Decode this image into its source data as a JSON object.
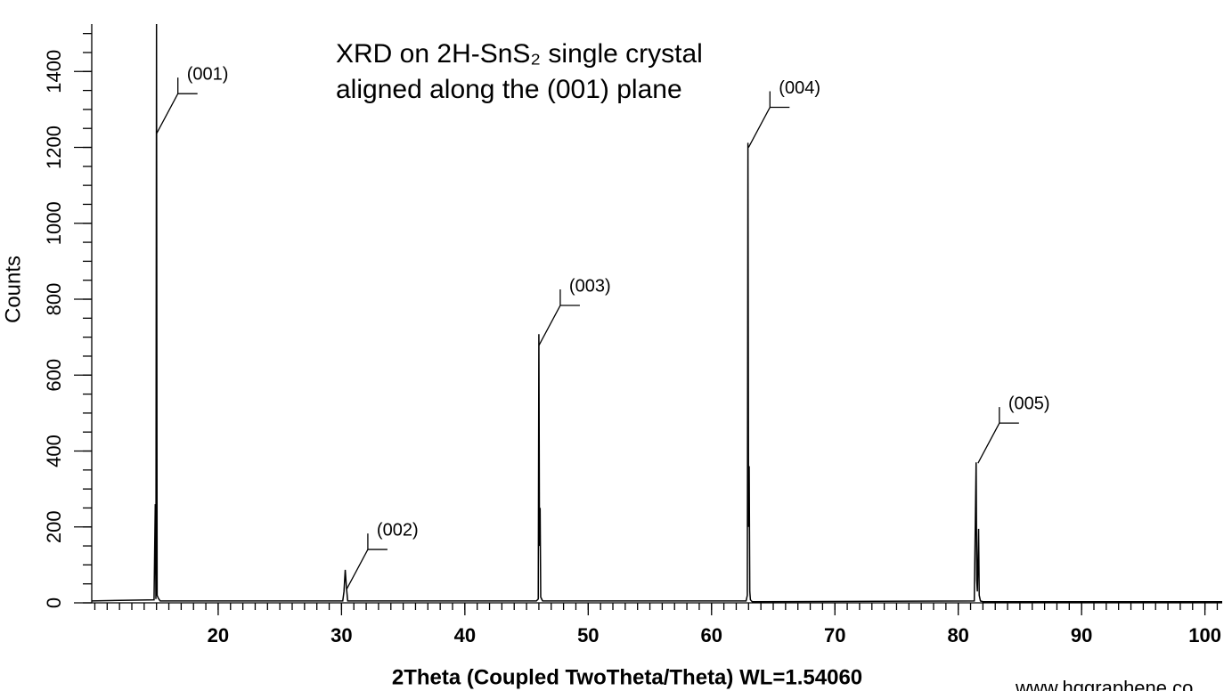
{
  "chart_data": {
    "type": "line",
    "title_lines": [
      "XRD on 2H-SnS₂ single crystal",
      "aligned along the (001) plane"
    ],
    "xlabel": "2Theta (Coupled TwoTheta/Theta) WL=1.54060",
    "ylabel": "Counts",
    "watermark": "www.hqgraphene.co",
    "xlim": [
      9.75,
      101.4
    ],
    "ylim": [
      0,
      1525
    ],
    "xticks": [
      20,
      30,
      40,
      50,
      60,
      70,
      80,
      90,
      100
    ],
    "yticks": [
      0,
      200,
      400,
      600,
      800,
      1000,
      1200,
      1400
    ],
    "x_minor_step": 1,
    "y_minor_step": 50,
    "series": [
      {
        "color": "#000000",
        "x": [
          9.75,
          14.8,
          14.9,
          14.95,
          15.0,
          15.05,
          15.15,
          15.3,
          30.1,
          30.2,
          30.3,
          30.4,
          30.5,
          45.8,
          45.95,
          46.0,
          46.05,
          46.1,
          46.15,
          46.3,
          62.8,
          62.9,
          62.95,
          63.0,
          63.05,
          63.1,
          63.15,
          63.3,
          81.3,
          81.45,
          81.5,
          81.55,
          81.65,
          81.7,
          81.8,
          82.0,
          101.4
        ],
        "values": [
          5,
          8,
          260,
          10,
          1525,
          20,
          12,
          5,
          5,
          30,
          87,
          40,
          5,
          5,
          10,
          708,
          150,
          250,
          15,
          5,
          5,
          20,
          1212,
          200,
          360,
          30,
          8,
          3,
          5,
          370,
          60,
          30,
          195,
          20,
          5,
          3,
          3
        ]
      }
    ],
    "annotations": [
      {
        "label": "(001)",
        "x": 15.0,
        "y": 1236
      },
      {
        "label": "(002)",
        "x": 30.4,
        "y": 35
      },
      {
        "label": "(003)",
        "x": 46.0,
        "y": 678
      },
      {
        "label": "(004)",
        "x": 63.0,
        "y": 1200
      },
      {
        "label": "(005)",
        "x": 81.6,
        "y": 368
      }
    ]
  }
}
